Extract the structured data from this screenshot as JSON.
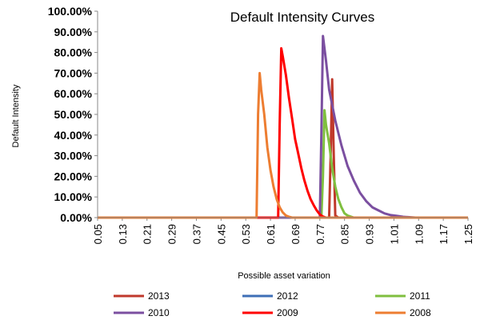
{
  "chart_data": {
    "type": "line",
    "title": "Default Intensity Curves",
    "xlabel": "Possible asset variation",
    "ylabel": "Default Intensity",
    "xlim": [
      0.05,
      1.25
    ],
    "ylim": [
      0,
      1
    ],
    "y_ticks": [
      "0.00%",
      "10.00%",
      "20.00%",
      "30.00%",
      "40.00%",
      "50.00%",
      "60.00%",
      "70.00%",
      "80.00%",
      "90.00%",
      "100.00%"
    ],
    "x_ticks": [
      "0.05",
      "0.13",
      "0.21",
      "0.29",
      "0.37",
      "0.45",
      "0.53",
      "0.61",
      "0.69",
      "0.77",
      "0.85",
      "0.93",
      "1.01",
      "1.09",
      "1.17",
      "1.25"
    ],
    "grid": false,
    "legend_position": "bottom",
    "series": [
      {
        "name": "2013",
        "color": "#C0392B",
        "points": [
          [
            0.05,
            0
          ],
          [
            0.8,
            0
          ],
          [
            0.805,
            0.3
          ],
          [
            0.81,
            0.67
          ],
          [
            0.815,
            0.3
          ],
          [
            0.82,
            0.01
          ],
          [
            0.83,
            0
          ],
          [
            1.25,
            0
          ]
        ]
      },
      {
        "name": "2012",
        "color": "#3E6FB6",
        "points": [
          [
            0.05,
            0
          ],
          [
            1.25,
            0
          ]
        ]
      },
      {
        "name": "2011",
        "color": "#7FBF3F",
        "points": [
          [
            0.05,
            0
          ],
          [
            0.775,
            0
          ],
          [
            0.78,
            0.2
          ],
          [
            0.785,
            0.52
          ],
          [
            0.79,
            0.45
          ],
          [
            0.8,
            0.36
          ],
          [
            0.81,
            0.24
          ],
          [
            0.82,
            0.15
          ],
          [
            0.83,
            0.09
          ],
          [
            0.84,
            0.05
          ],
          [
            0.85,
            0.02
          ],
          [
            0.86,
            0.01
          ],
          [
            0.88,
            0
          ],
          [
            1.25,
            0
          ]
        ]
      },
      {
        "name": "2010",
        "color": "#7B4FA0",
        "points": [
          [
            0.05,
            0
          ],
          [
            0.77,
            0
          ],
          [
            0.775,
            0.4
          ],
          [
            0.78,
            0.88
          ],
          [
            0.79,
            0.76
          ],
          [
            0.8,
            0.62
          ],
          [
            0.82,
            0.47
          ],
          [
            0.84,
            0.35
          ],
          [
            0.86,
            0.25
          ],
          [
            0.88,
            0.18
          ],
          [
            0.9,
            0.12
          ],
          [
            0.92,
            0.08
          ],
          [
            0.94,
            0.05
          ],
          [
            0.96,
            0.035
          ],
          [
            0.98,
            0.02
          ],
          [
            1.0,
            0.012
          ],
          [
            1.02,
            0.008
          ],
          [
            1.04,
            0.004
          ],
          [
            1.06,
            0.002
          ],
          [
            1.08,
            0
          ],
          [
            1.25,
            0
          ]
        ]
      },
      {
        "name": "2009",
        "color": "#FF0000",
        "points": [
          [
            0.05,
            0
          ],
          [
            0.635,
            0
          ],
          [
            0.64,
            0.45
          ],
          [
            0.645,
            0.82
          ],
          [
            0.65,
            0.78
          ],
          [
            0.66,
            0.69
          ],
          [
            0.67,
            0.58
          ],
          [
            0.68,
            0.48
          ],
          [
            0.69,
            0.38
          ],
          [
            0.7,
            0.31
          ],
          [
            0.71,
            0.24
          ],
          [
            0.72,
            0.18
          ],
          [
            0.73,
            0.13
          ],
          [
            0.74,
            0.09
          ],
          [
            0.75,
            0.06
          ],
          [
            0.76,
            0.035
          ],
          [
            0.77,
            0.015
          ],
          [
            0.78,
            0.005
          ],
          [
            0.79,
            0
          ],
          [
            1.25,
            0
          ]
        ]
      },
      {
        "name": "2008",
        "color": "#ED7D31",
        "points": [
          [
            0.05,
            0
          ],
          [
            0.565,
            0
          ],
          [
            0.57,
            0.5
          ],
          [
            0.575,
            0.7
          ],
          [
            0.58,
            0.62
          ],
          [
            0.59,
            0.5
          ],
          [
            0.6,
            0.34
          ],
          [
            0.61,
            0.23
          ],
          [
            0.62,
            0.15
          ],
          [
            0.63,
            0.09
          ],
          [
            0.64,
            0.05
          ],
          [
            0.65,
            0.025
          ],
          [
            0.66,
            0.01
          ],
          [
            0.67,
            0.004
          ],
          [
            0.68,
            0
          ],
          [
            1.25,
            0
          ]
        ]
      }
    ]
  }
}
